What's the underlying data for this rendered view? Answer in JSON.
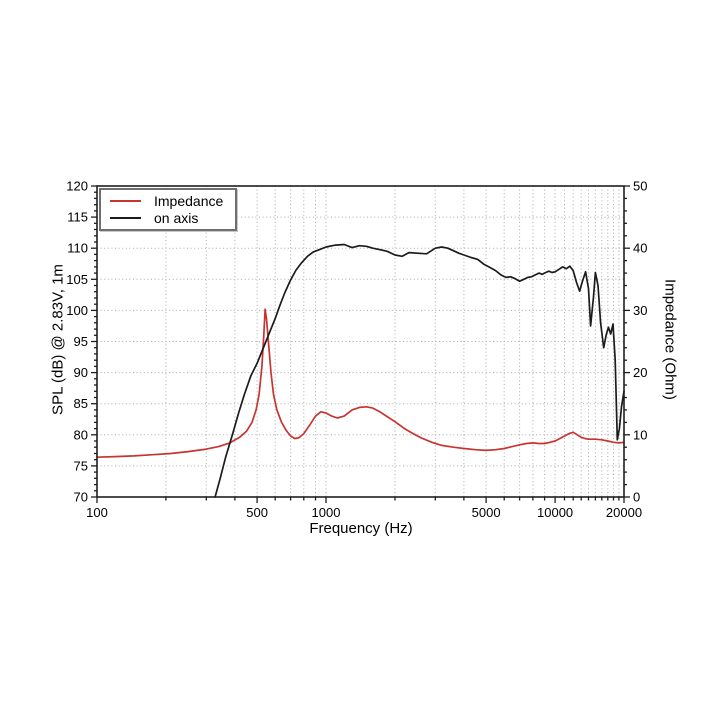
{
  "chart_data": {
    "type": "line",
    "title": "",
    "xlabel": "Frequency (Hz)",
    "ylabel_left": "SPL (dB) @ 2.83V, 1m",
    "ylabel_right": "Impedance (Ohm)",
    "background": "#ffffff",
    "grid": "dotted-gray",
    "x": {
      "scale": "log",
      "min": 100,
      "max": 20000,
      "major_ticks": [
        {
          "value": 100,
          "label": "100"
        },
        {
          "value": 500,
          "label": "500"
        },
        {
          "value": 1000,
          "label": "1000"
        },
        {
          "value": 5000,
          "label": "5000"
        },
        {
          "value": 10000,
          "label": "10000"
        },
        {
          "value": 20000,
          "label": "20000"
        }
      ],
      "minor_ticks": [
        200,
        300,
        400,
        600,
        700,
        800,
        900,
        2000,
        3000,
        4000,
        6000,
        7000,
        8000,
        9000,
        11000,
        12000,
        13000,
        14000,
        15000,
        16000,
        17000,
        18000,
        19000
      ],
      "gridlines": [
        200,
        300,
        400,
        500,
        600,
        700,
        800,
        900,
        1000,
        2000,
        3000,
        4000,
        5000,
        6000,
        7000,
        8000,
        9000,
        10000,
        11000,
        12000,
        13000,
        14000,
        15000,
        16000,
        17000,
        18000,
        19000
      ]
    },
    "y_left": {
      "min": 70,
      "max": 120,
      "major_step": 5,
      "minor_step": 1,
      "major_ticks": [
        70,
        75,
        80,
        85,
        90,
        95,
        100,
        105,
        110,
        115,
        120
      ],
      "gridlines": [
        75,
        80,
        85,
        90,
        95,
        100,
        105,
        110,
        115
      ]
    },
    "y_right": {
      "min": 0,
      "max": 50,
      "major_step": 10,
      "minor_step": 2,
      "major_ticks": [
        0,
        10,
        20,
        30,
        40,
        50
      ],
      "gridlines": []
    },
    "legend": {
      "position": "top-left",
      "items": [
        {
          "label": "Impedance",
          "color": "#c63531"
        },
        {
          "label": "on axis",
          "color": "#1c1c1c"
        }
      ]
    },
    "series": [
      {
        "name": "Impedance",
        "axis": "right",
        "color": "#c63531",
        "unit": "Ohm",
        "points": [
          [
            100,
            6.4
          ],
          [
            120,
            6.5
          ],
          [
            145,
            6.6
          ],
          [
            175,
            6.8
          ],
          [
            210,
            7.0
          ],
          [
            250,
            7.3
          ],
          [
            300,
            7.7
          ],
          [
            340,
            8.1
          ],
          [
            380,
            8.7
          ],
          [
            420,
            9.6
          ],
          [
            450,
            10.6
          ],
          [
            475,
            12.0
          ],
          [
            495,
            14.0
          ],
          [
            510,
            16.5
          ],
          [
            525,
            21.0
          ],
          [
            535,
            26.0
          ],
          [
            542,
            30.2
          ],
          [
            550,
            28.5
          ],
          [
            560,
            25.0
          ],
          [
            575,
            20.0
          ],
          [
            590,
            16.5
          ],
          [
            610,
            14.0
          ],
          [
            640,
            12.0
          ],
          [
            670,
            10.7
          ],
          [
            700,
            9.8
          ],
          [
            730,
            9.4
          ],
          [
            760,
            9.5
          ],
          [
            800,
            10.2
          ],
          [
            850,
            11.6
          ],
          [
            900,
            13.0
          ],
          [
            950,
            13.7
          ],
          [
            1000,
            13.5
          ],
          [
            1060,
            13.0
          ],
          [
            1120,
            12.7
          ],
          [
            1200,
            13.0
          ],
          [
            1300,
            14.0
          ],
          [
            1400,
            14.4
          ],
          [
            1500,
            14.5
          ],
          [
            1600,
            14.3
          ],
          [
            1700,
            13.8
          ],
          [
            1800,
            13.2
          ],
          [
            2000,
            12.1
          ],
          [
            2200,
            11.0
          ],
          [
            2400,
            10.2
          ],
          [
            2600,
            9.5
          ],
          [
            2900,
            8.8
          ],
          [
            3200,
            8.3
          ],
          [
            3600,
            8.0
          ],
          [
            4000,
            7.8
          ],
          [
            4500,
            7.6
          ],
          [
            5000,
            7.5
          ],
          [
            5500,
            7.6
          ],
          [
            6000,
            7.8
          ],
          [
            6500,
            8.1
          ],
          [
            7000,
            8.4
          ],
          [
            7500,
            8.6
          ],
          [
            8000,
            8.7
          ],
          [
            8500,
            8.6
          ],
          [
            9000,
            8.6
          ],
          [
            9500,
            8.8
          ],
          [
            10000,
            9.0
          ],
          [
            10500,
            9.4
          ],
          [
            11000,
            9.8
          ],
          [
            11500,
            10.2
          ],
          [
            12000,
            10.4
          ],
          [
            12500,
            10.0
          ],
          [
            13000,
            9.6
          ],
          [
            13500,
            9.4
          ],
          [
            14000,
            9.3
          ],
          [
            15000,
            9.3
          ],
          [
            16000,
            9.2
          ],
          [
            17000,
            9.0
          ],
          [
            18000,
            8.8
          ],
          [
            19000,
            8.7
          ],
          [
            20000,
            8.8
          ]
        ]
      },
      {
        "name": "on axis",
        "axis": "left",
        "color": "#1c1c1c",
        "unit": "dB",
        "points": [
          [
            328,
            70
          ],
          [
            345,
            73
          ],
          [
            365,
            76.5
          ],
          [
            390,
            80
          ],
          [
            415,
            83.5
          ],
          [
            440,
            86.5
          ],
          [
            470,
            89.5
          ],
          [
            500,
            91.5
          ],
          [
            530,
            93.8
          ],
          [
            560,
            96
          ],
          [
            600,
            98.7
          ],
          [
            630,
            100.9
          ],
          [
            660,
            102.8
          ],
          [
            700,
            104.9
          ],
          [
            740,
            106.5
          ],
          [
            780,
            107.6
          ],
          [
            830,
            108.7
          ],
          [
            880,
            109.4
          ],
          [
            940,
            109.8
          ],
          [
            1000,
            110.2
          ],
          [
            1100,
            110.5
          ],
          [
            1200,
            110.6
          ],
          [
            1300,
            110.1
          ],
          [
            1400,
            110.4
          ],
          [
            1500,
            110.3
          ],
          [
            1600,
            110.0
          ],
          [
            1700,
            109.8
          ],
          [
            1850,
            109.5
          ],
          [
            2000,
            108.9
          ],
          [
            2150,
            108.7
          ],
          [
            2300,
            109.3
          ],
          [
            2500,
            109.2
          ],
          [
            2750,
            109.1
          ],
          [
            3000,
            110.0
          ],
          [
            3200,
            110.2
          ],
          [
            3400,
            110.0
          ],
          [
            3600,
            109.6
          ],
          [
            3800,
            109.2
          ],
          [
            4000,
            108.9
          ],
          [
            4300,
            108.5
          ],
          [
            4600,
            108.2
          ],
          [
            4900,
            107.4
          ],
          [
            5200,
            106.9
          ],
          [
            5500,
            106.4
          ],
          [
            5800,
            105.7
          ],
          [
            6100,
            105.3
          ],
          [
            6400,
            105.4
          ],
          [
            6700,
            105.1
          ],
          [
            7000,
            104.7
          ],
          [
            7300,
            105.0
          ],
          [
            7600,
            105.3
          ],
          [
            7900,
            105.4
          ],
          [
            8200,
            105.7
          ],
          [
            8500,
            106.0
          ],
          [
            8800,
            105.8
          ],
          [
            9100,
            106.1
          ],
          [
            9400,
            106.3
          ],
          [
            9700,
            106.1
          ],
          [
            10000,
            106.2
          ],
          [
            10400,
            106.6
          ],
          [
            10800,
            107.0
          ],
          [
            11200,
            106.7
          ],
          [
            11600,
            107.1
          ],
          [
            12000,
            106.4
          ],
          [
            12400,
            104.5
          ],
          [
            12800,
            103.1
          ],
          [
            13200,
            104.8
          ],
          [
            13600,
            106.2
          ],
          [
            14000,
            103.5
          ],
          [
            14300,
            97.5
          ],
          [
            14700,
            102
          ],
          [
            15000,
            106.1
          ],
          [
            15400,
            104
          ],
          [
            15800,
            98
          ],
          [
            16300,
            94.0
          ],
          [
            16700,
            96
          ],
          [
            17100,
            97.3
          ],
          [
            17500,
            96.2
          ],
          [
            17900,
            97.8
          ],
          [
            18300,
            92
          ],
          [
            18700,
            79.2
          ],
          [
            19100,
            81
          ],
          [
            19500,
            84.5
          ],
          [
            20000,
            87.0
          ]
        ]
      }
    ]
  }
}
